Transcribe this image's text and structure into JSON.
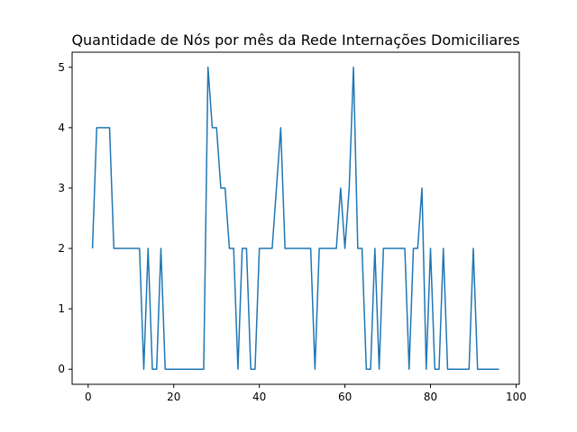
{
  "chart_data": {
    "type": "line",
    "title": "Quantidade de Nós por mês da Rede Internações Domiciliares",
    "xlabel": "",
    "ylabel": "",
    "xlim": [
      -3.75,
      100.75
    ],
    "ylim": [
      -0.25,
      5.25
    ],
    "x_ticks": [
      0,
      20,
      40,
      60,
      80,
      100
    ],
    "y_ticks": [
      0,
      1,
      2,
      3,
      4,
      5
    ],
    "grid": false,
    "legend": "none",
    "color": "#1f77b4",
    "x_start": 1,
    "values": [
      2,
      4,
      4,
      4,
      4,
      2,
      2,
      2,
      2,
      2,
      2,
      2,
      0,
      2,
      0,
      0,
      2,
      0,
      0,
      0,
      0,
      0,
      0,
      0,
      0,
      0,
      0,
      5,
      4,
      4,
      3,
      3,
      2,
      2,
      0,
      2,
      2,
      0,
      0,
      2,
      2,
      2,
      2,
      3,
      4,
      2,
      2,
      2,
      2,
      2,
      2,
      2,
      0,
      2,
      2,
      2,
      2,
      2,
      3,
      2,
      3,
      5,
      2,
      2,
      0,
      0,
      2,
      0,
      2,
      2,
      2,
      2,
      2,
      2,
      0,
      2,
      2,
      3,
      0,
      2,
      0,
      0,
      2,
      0,
      0,
      0,
      0,
      0,
      0,
      2,
      0,
      0,
      0,
      0,
      0,
      0
    ]
  }
}
